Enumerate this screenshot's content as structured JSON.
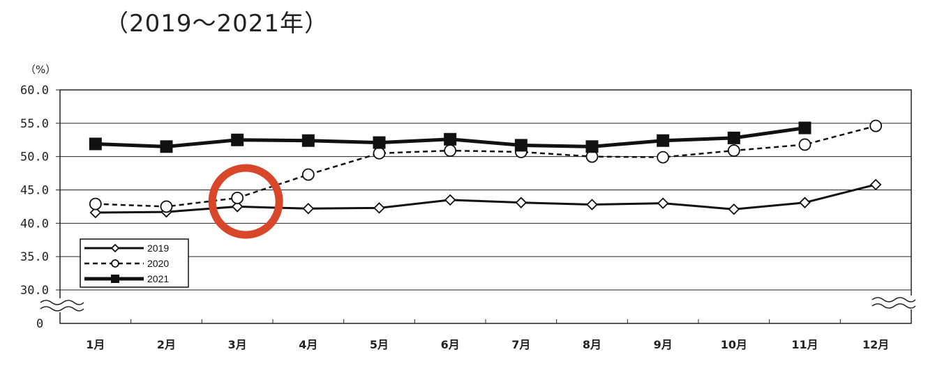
{
  "chart_data": {
    "type": "line",
    "title": "（2019～2021年）",
    "unit_label": "（%）",
    "zero_label": "0",
    "categories": [
      "1月",
      "2月",
      "3月",
      "4月",
      "5月",
      "6月",
      "7月",
      "8月",
      "9月",
      "10月",
      "11月",
      "12月"
    ],
    "yticks": [
      "60.0",
      "55.0",
      "50.0",
      "45.0",
      "40.0",
      "35.0",
      "30.0"
    ],
    "ylim": [
      30,
      60
    ],
    "axis_break": true,
    "grid": true,
    "legend_position": "bottom-left",
    "series": [
      {
        "name": "2019",
        "marker": "diamond",
        "line": "solid",
        "values": [
          41.6,
          41.7,
          42.5,
          42.2,
          42.3,
          43.5,
          43.1,
          42.8,
          43.0,
          42.1,
          43.1,
          45.8
        ]
      },
      {
        "name": "2020",
        "marker": "circle",
        "line": "dashed",
        "values": [
          42.9,
          42.5,
          43.8,
          47.3,
          50.5,
          50.9,
          50.7,
          50.0,
          49.9,
          50.9,
          51.8,
          54.6
        ]
      },
      {
        "name": "2021",
        "marker": "square",
        "line": "solid-thick",
        "values": [
          51.9,
          51.5,
          52.5,
          52.4,
          52.1,
          52.6,
          51.7,
          51.5,
          52.4,
          52.8,
          54.3,
          null
        ]
      }
    ],
    "annotation": {
      "type": "circle",
      "category": "3月",
      "color": "#d9472b"
    }
  }
}
